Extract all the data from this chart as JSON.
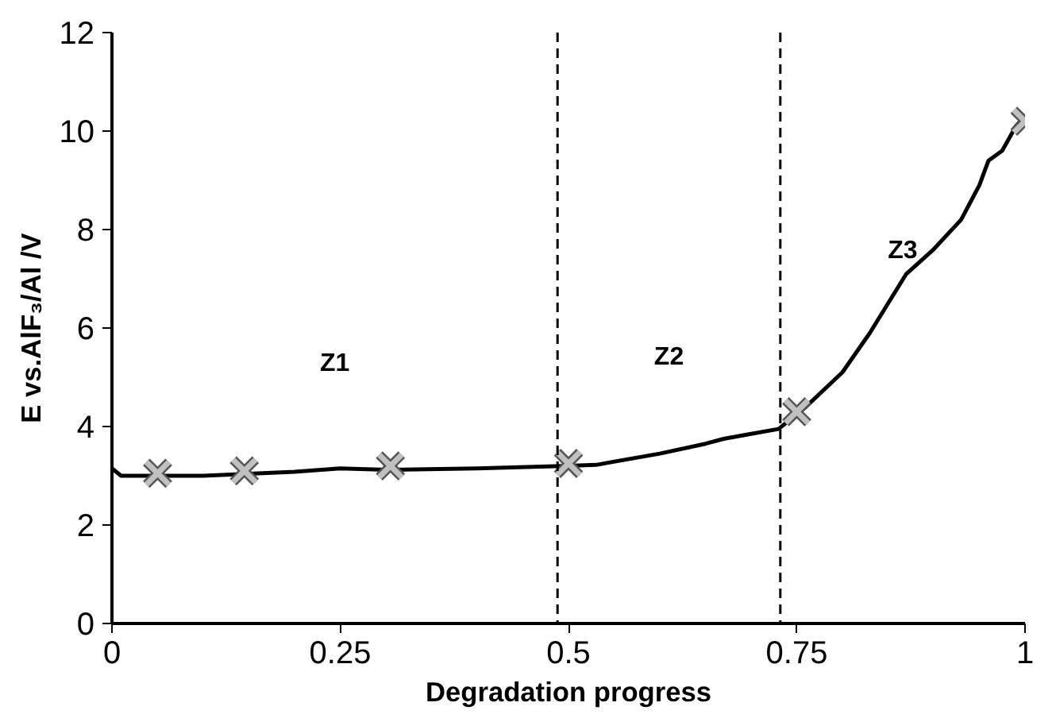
{
  "chart_data": {
    "type": "line",
    "xlabel": "Degradation progress",
    "ylabel": "E vs.AlF₃/Al /V",
    "xlim": [
      0,
      1
    ],
    "ylim": [
      0,
      12
    ],
    "xticks": [
      0,
      0.25,
      0.5,
      0.75,
      1
    ],
    "yticks": [
      0,
      2,
      4,
      6,
      8,
      10,
      12
    ],
    "grid": false,
    "series": [
      {
        "color": "#000000",
        "line_style": "solid",
        "marker": "none",
        "x": [
          0,
          0.01,
          0.1,
          0.2,
          0.25,
          0.3,
          0.4,
          0.5,
          0.53,
          0.6,
          0.65,
          0.67,
          0.7,
          0.73,
          0.76,
          0.8,
          0.83,
          0.85,
          0.87,
          0.9,
          0.93,
          0.95,
          0.96,
          0.975,
          0.99,
          1.0
        ],
        "values": [
          3.15,
          3.0,
          3.0,
          3.08,
          3.15,
          3.12,
          3.15,
          3.2,
          3.22,
          3.45,
          3.65,
          3.75,
          3.85,
          3.95,
          4.4,
          5.1,
          5.9,
          6.5,
          7.1,
          7.6,
          8.2,
          8.9,
          9.4,
          9.6,
          10.1,
          10.3
        ]
      },
      {
        "type": "scatter",
        "color": "#c0c0c0",
        "marker": "cross",
        "x": [
          0.05,
          0.145,
          0.305,
          0.5,
          0.75,
          1.0
        ],
        "values": [
          3.05,
          3.1,
          3.2,
          3.25,
          4.3,
          10.2
        ]
      }
    ],
    "ref_lines": [
      {
        "axis": "x",
        "value": 0.488,
        "line_style": "dashed",
        "color": "#000000"
      },
      {
        "axis": "x",
        "value": 0.732,
        "line_style": "dashed",
        "color": "#000000"
      }
    ],
    "annotations": [
      "Z1",
      "Z2",
      "Z3"
    ]
  }
}
